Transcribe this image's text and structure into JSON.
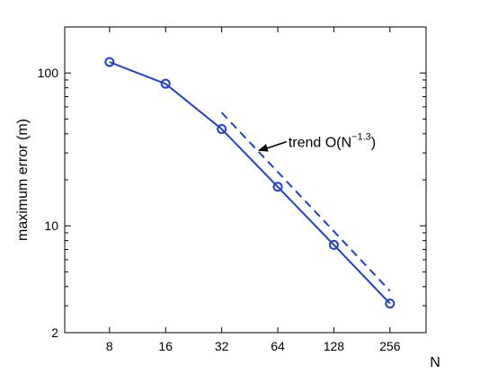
{
  "chart_data": {
    "type": "line",
    "xlabel": "N",
    "ylabel": "maximum error (m)",
    "x_scale": "log2",
    "y_scale": "log10",
    "xlim": [
      4.6,
      400
    ],
    "ylim": [
      2,
      200
    ],
    "x_ticks": [
      8,
      16,
      32,
      64,
      128,
      256
    ],
    "x_tick_labels": [
      "8",
      "16",
      "32",
      "64",
      "128",
      "256"
    ],
    "y_ticks": [
      2,
      10,
      100
    ],
    "y_tick_labels": [
      "2",
      "10",
      "100"
    ],
    "grid": false,
    "color": "#1f3fd6",
    "series": [
      {
        "style": "solid",
        "marker": "circle",
        "x": [
          8,
          16,
          32,
          64,
          128,
          256
        ],
        "y": [
          118,
          85,
          43,
          18,
          7.5,
          3.1
        ]
      },
      {
        "style": "dashed",
        "marker": "none",
        "x": [
          32,
          64,
          128,
          256
        ],
        "y": [
          55,
          22.5,
          9.2,
          3.75
        ]
      }
    ],
    "annotation": {
      "text": "trend O(N",
      "superscript": "−1.3",
      "suffix": ")",
      "points_to": {
        "x": 50,
        "y": 31
      }
    }
  }
}
